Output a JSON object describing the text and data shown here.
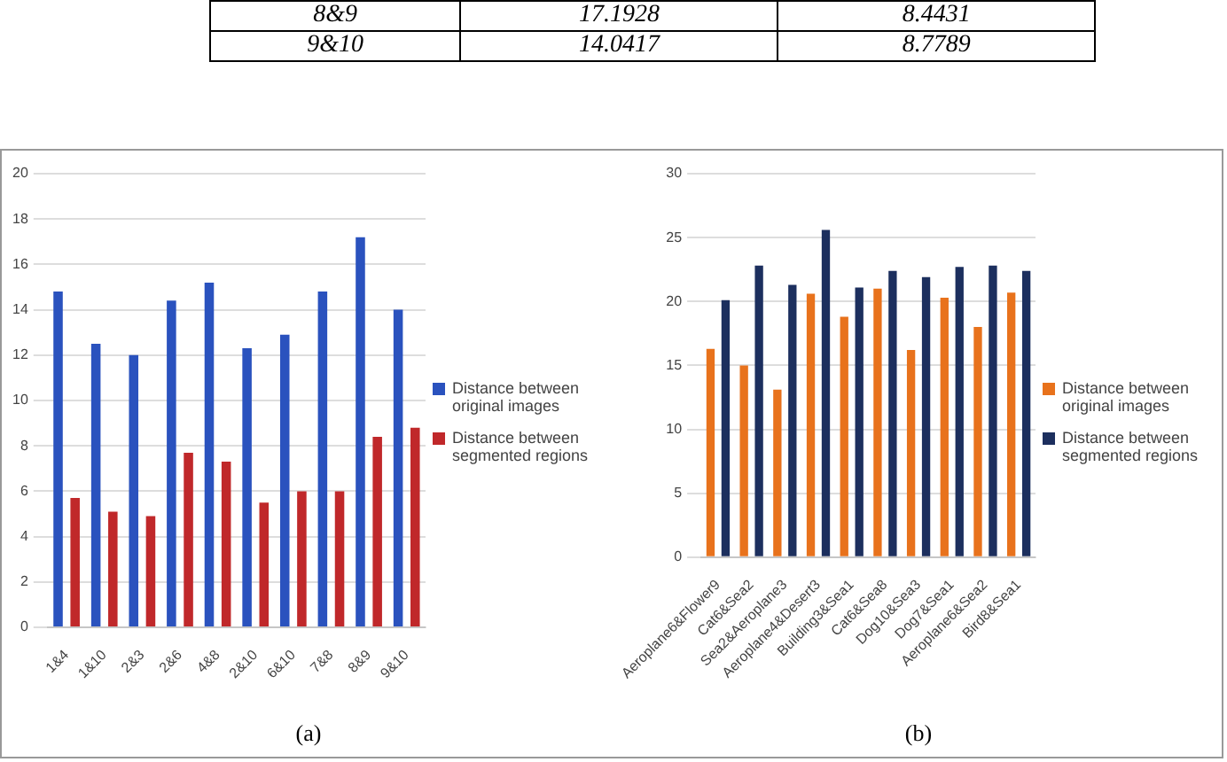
{
  "chart_data": [
    {
      "type": "other",
      "annotations": [
        "8&9",
        "17.1928",
        "8.4431",
        "9&10",
        "14.0417",
        "8.7789"
      ]
    },
    {
      "type": "bar",
      "categories": [
        "1&4",
        "1&10",
        "2&3",
        "2&6",
        "4&8",
        "2&10",
        "6&10",
        "7&8",
        "8&9",
        "9&10"
      ],
      "series": [
        {
          "name": "Distance between original images",
          "color": "#2a52be",
          "values": [
            14.8,
            12.5,
            12.0,
            14.4,
            15.2,
            12.3,
            12.9,
            14.8,
            17.2,
            14.0
          ]
        },
        {
          "name": "Distance between segmented regions",
          "color": "#c0282a",
          "values": [
            5.7,
            5.1,
            4.9,
            7.7,
            7.3,
            5.5,
            6.0,
            6.0,
            8.4,
            8.8
          ]
        }
      ],
      "ylim": [
        0,
        20
      ],
      "yticks": [
        0,
        2,
        4,
        6,
        8,
        10,
        12,
        14,
        16,
        18,
        20
      ],
      "grid": "y",
      "legend": "right",
      "annotations": [
        "(a)"
      ]
    },
    {
      "type": "bar",
      "categories": [
        "Aeroplane6&Flower9",
        "Cat6&Sea2",
        "Sea2&Aeroplane3",
        "Aeroplane4&Desert3",
        "Building3&Sea1",
        "Cat6&Sea8",
        "Dog10&Sea3",
        "Dog7&Sea1",
        "Aeroplane6&Sea2",
        "Bird8&Sea1"
      ],
      "series": [
        {
          "name": "Distance between original images",
          "color": "#e8721c",
          "values": [
            16.3,
            15.0,
            13.1,
            20.6,
            18.8,
            21.0,
            16.2,
            20.3,
            18.0,
            20.7
          ]
        },
        {
          "name": "Distance between segmented regions",
          "color": "#1c2f5e",
          "values": [
            20.1,
            22.8,
            21.3,
            25.6,
            21.1,
            22.4,
            21.9,
            22.7,
            22.8,
            22.4
          ]
        }
      ],
      "ylim": [
        0,
        30
      ],
      "yticks": [
        0,
        5,
        10,
        15,
        20,
        25,
        30
      ],
      "grid": "y",
      "legend": "right",
      "annotations": [
        "(b)"
      ]
    }
  ]
}
